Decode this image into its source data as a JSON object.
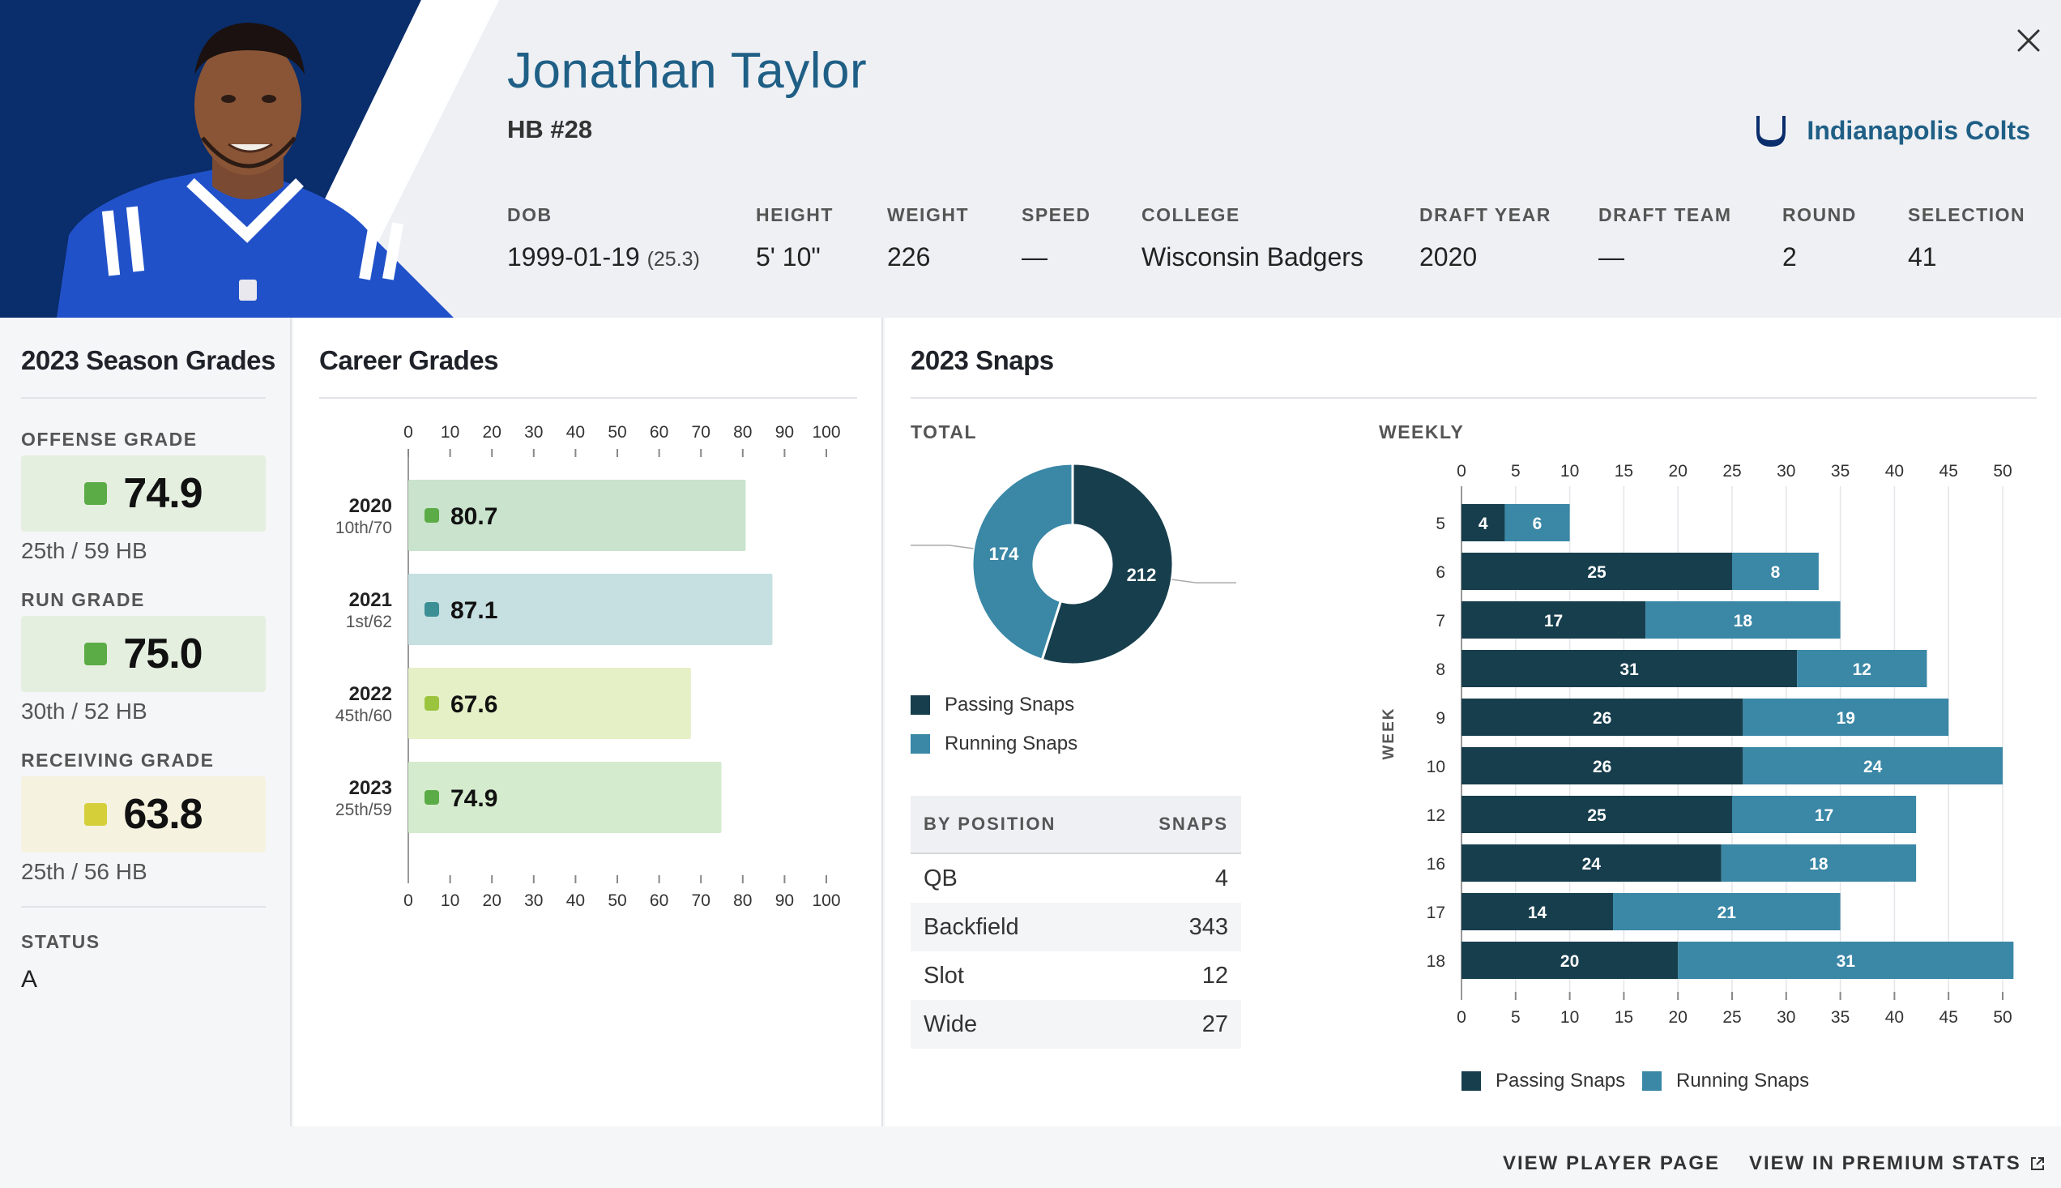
{
  "player": {
    "name": "Jonathan Taylor",
    "position": "HB #28",
    "team": "Indianapolis Colts"
  },
  "bio": [
    {
      "label": "DOB",
      "value": "1999-01-19",
      "extra": "(25.3)"
    },
    {
      "label": "HEIGHT",
      "value": "5' 10\""
    },
    {
      "label": "WEIGHT",
      "value": "226"
    },
    {
      "label": "SPEED",
      "value": "—"
    },
    {
      "label": "COLLEGE",
      "value": "Wisconsin Badgers"
    },
    {
      "label": "DRAFT YEAR",
      "value": "2020"
    },
    {
      "label": "DRAFT TEAM",
      "value": "—"
    },
    {
      "label": "ROUND",
      "value": "2"
    },
    {
      "label": "SELECTION",
      "value": "41"
    }
  ],
  "season_grades": {
    "title": "2023 Season Grades",
    "offense": {
      "label": "OFFENSE GRADE",
      "value": "74.9",
      "rank": "25th / 59 HB"
    },
    "run": {
      "label": "RUN GRADE",
      "value": "75.0",
      "rank": "30th / 52 HB"
    },
    "receiving": {
      "label": "RECEIVING GRADE",
      "value": "63.8",
      "rank": "25th / 56 HB"
    },
    "status": {
      "label": "STATUS",
      "value": "A"
    }
  },
  "colors": {
    "navy": "#0a2d6b",
    "team_blue": "#1f5f86",
    "passing": "#173e4d",
    "running": "#3a87a6",
    "grade_green": "#5bab46",
    "grade_teal": "#3b8f95",
    "grade_lime": "#9bc43e",
    "grade_yellow": "#d5cf3a"
  },
  "chart_data": [
    {
      "type": "bar",
      "orientation": "horizontal",
      "title": "Career Grades",
      "categories": [
        "2020",
        "2021",
        "2022",
        "2023"
      ],
      "sublabels": [
        "10th/70",
        "1st/62",
        "45th/60",
        "25th/59"
      ],
      "values": [
        80.7,
        87.1,
        67.6,
        74.9
      ],
      "xlim": [
        0,
        100
      ],
      "ticks": [
        0,
        10,
        20,
        30,
        40,
        50,
        60,
        70,
        80,
        90,
        100
      ]
    },
    {
      "type": "pie",
      "subtitle": "TOTAL",
      "labels": [
        "Passing Snaps",
        "Running Snaps"
      ],
      "values": [
        212,
        174
      ]
    },
    {
      "type": "bar",
      "orientation": "horizontal",
      "stacked": true,
      "subtitle": "WEEKLY",
      "ylabel": "WEEK",
      "categories": [
        "5",
        "6",
        "7",
        "8",
        "9",
        "10",
        "12",
        "16",
        "17",
        "18"
      ],
      "series": [
        {
          "name": "Passing Snaps",
          "values": [
            4,
            25,
            17,
            31,
            26,
            26,
            25,
            24,
            14,
            20
          ]
        },
        {
          "name": "Running Snaps",
          "values": [
            6,
            8,
            18,
            12,
            19,
            24,
            17,
            18,
            21,
            31
          ]
        }
      ],
      "xlim": [
        0,
        50
      ],
      "ticks": [
        0,
        5,
        10,
        15,
        20,
        25,
        30,
        35,
        40,
        45,
        50
      ]
    }
  ],
  "snaps": {
    "title": "2023 Snaps",
    "by_position_header": "BY POSITION",
    "snaps_header": "SNAPS",
    "positions": [
      {
        "name": "QB",
        "snaps": "4"
      },
      {
        "name": "Backfield",
        "snaps": "343"
      },
      {
        "name": "Slot",
        "snaps": "12"
      },
      {
        "name": "Wide",
        "snaps": "27"
      }
    ]
  },
  "footer": {
    "view_player": "VIEW PLAYER PAGE",
    "view_premium": "VIEW IN PREMIUM STATS"
  }
}
